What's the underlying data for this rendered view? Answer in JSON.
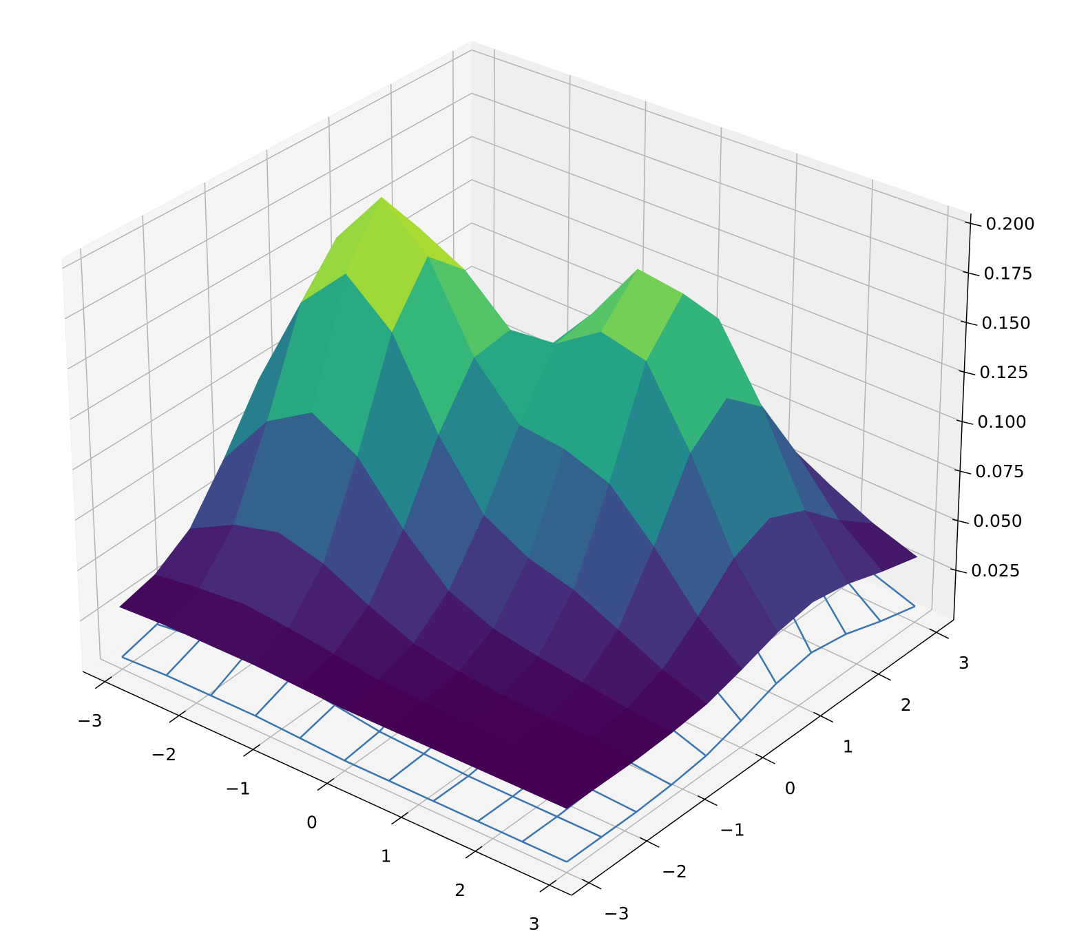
{
  "chart_data": {
    "type": "surface3d",
    "x": [
      -3,
      -2.4,
      -1.8,
      -1.2,
      -0.6,
      0,
      0.6,
      1.2,
      1.8,
      2.4,
      3
    ],
    "y": [
      -3,
      -2.4,
      -1.8,
      -1.2,
      -0.6,
      0,
      0.6,
      1.2,
      1.8,
      2.4,
      3
    ],
    "xlim": [
      -3.3,
      3.3
    ],
    "ylim": [
      -3.3,
      3.3
    ],
    "zlim": [
      0,
      0.205
    ],
    "xticks": [
      {
        "value": -3,
        "label": "−3"
      },
      {
        "value": -2,
        "label": "−2"
      },
      {
        "value": -1,
        "label": "−1"
      },
      0,
      1,
      2,
      3
    ],
    "yticks": [
      {
        "value": -3,
        "label": "−3"
      },
      {
        "value": -2,
        "label": "−2"
      },
      {
        "value": -1,
        "label": "−1"
      },
      0,
      1,
      2,
      3
    ],
    "zticks": [
      0.025,
      {
        "value": 0.05,
        "label": "0.050"
      },
      0.075,
      {
        "value": 0.1,
        "label": "0.100"
      },
      0.125,
      {
        "value": 0.15,
        "label": "0.150"
      },
      0.175,
      {
        "value": 0.2,
        "label": "0.200"
      }
    ],
    "grid": true,
    "series": [
      {
        "style": "surface",
        "colormap": "viridis",
        "z": [
          [
            0.031,
            0.035,
            0.046,
            0.07,
            0.099,
            0.113,
            0.099,
            0.07,
            0.046,
            0.035,
            0.031
          ],
          [
            0.032,
            0.038,
            0.058,
            0.099,
            0.149,
            0.172,
            0.149,
            0.1,
            0.059,
            0.038,
            0.032
          ],
          [
            0.032,
            0.04,
            0.064,
            0.113,
            0.173,
            0.202,
            0.175,
            0.117,
            0.067,
            0.041,
            0.033
          ],
          [
            0.032,
            0.038,
            0.058,
            0.1,
            0.152,
            0.18,
            0.162,
            0.116,
            0.072,
            0.046,
            0.035
          ],
          [
            0.031,
            0.035,
            0.047,
            0.073,
            0.109,
            0.137,
            0.14,
            0.119,
            0.087,
            0.058,
            0.041
          ],
          [
            0.03,
            0.032,
            0.038,
            0.052,
            0.078,
            0.112,
            0.142,
            0.146,
            0.12,
            0.081,
            0.05
          ],
          [
            0.03,
            0.031,
            0.034,
            0.043,
            0.066,
            0.109,
            0.157,
            0.178,
            0.151,
            0.1,
            0.058
          ],
          [
            0.03,
            0.03,
            0.032,
            0.039,
            0.06,
            0.101,
            0.151,
            0.174,
            0.15,
            0.1,
            0.058
          ],
          [
            0.03,
            0.03,
            0.031,
            0.036,
            0.05,
            0.079,
            0.114,
            0.13,
            0.114,
            0.079,
            0.05
          ],
          [
            0.03,
            0.03,
            0.031,
            0.033,
            0.04,
            0.054,
            0.071,
            0.079,
            0.071,
            0.054,
            0.04
          ],
          [
            0.03,
            0.03,
            0.03,
            0.031,
            0.033,
            0.038,
            0.044,
            0.047,
            0.044,
            0.038,
            0.033
          ]
        ]
      },
      {
        "style": "wireframe",
        "color": "#3a75b0",
        "z": [
          [
            0.006,
            0.01,
            0.021,
            0.045,
            0.074,
            0.088,
            0.074,
            0.045,
            0.021,
            0.01,
            0.006
          ],
          [
            0.007,
            0.013,
            0.033,
            0.074,
            0.124,
            0.147,
            0.124,
            0.075,
            0.034,
            0.013,
            0.007
          ],
          [
            0.007,
            0.015,
            0.039,
            0.088,
            0.148,
            0.177,
            0.15,
            0.092,
            0.042,
            0.016,
            0.008
          ],
          [
            0.007,
            0.013,
            0.033,
            0.075,
            0.127,
            0.155,
            0.137,
            0.091,
            0.047,
            0.021,
            0.01
          ],
          [
            0.006,
            0.01,
            0.022,
            0.048,
            0.084,
            0.112,
            0.115,
            0.094,
            0.062,
            0.033,
            0.016
          ],
          [
            0.005,
            0.007,
            0.013,
            0.027,
            0.053,
            0.087,
            0.117,
            0.121,
            0.095,
            0.056,
            0.025
          ],
          [
            0.005,
            0.006,
            0.009,
            0.018,
            0.041,
            0.084,
            0.132,
            0.153,
            0.126,
            0.075,
            0.033
          ],
          [
            0.005,
            0.005,
            0.007,
            0.014,
            0.035,
            0.076,
            0.126,
            0.149,
            0.125,
            0.075,
            0.033
          ],
          [
            0.005,
            0.005,
            0.006,
            0.011,
            0.025,
            0.054,
            0.089,
            0.105,
            0.089,
            0.054,
            0.025
          ],
          [
            0.005,
            0.005,
            0.006,
            0.008,
            0.015,
            0.029,
            0.046,
            0.054,
            0.046,
            0.029,
            0.015
          ],
          [
            0.005,
            0.005,
            0.005,
            0.006,
            0.008,
            0.013,
            0.019,
            0.022,
            0.019,
            0.013,
            0.008
          ]
        ]
      }
    ]
  }
}
